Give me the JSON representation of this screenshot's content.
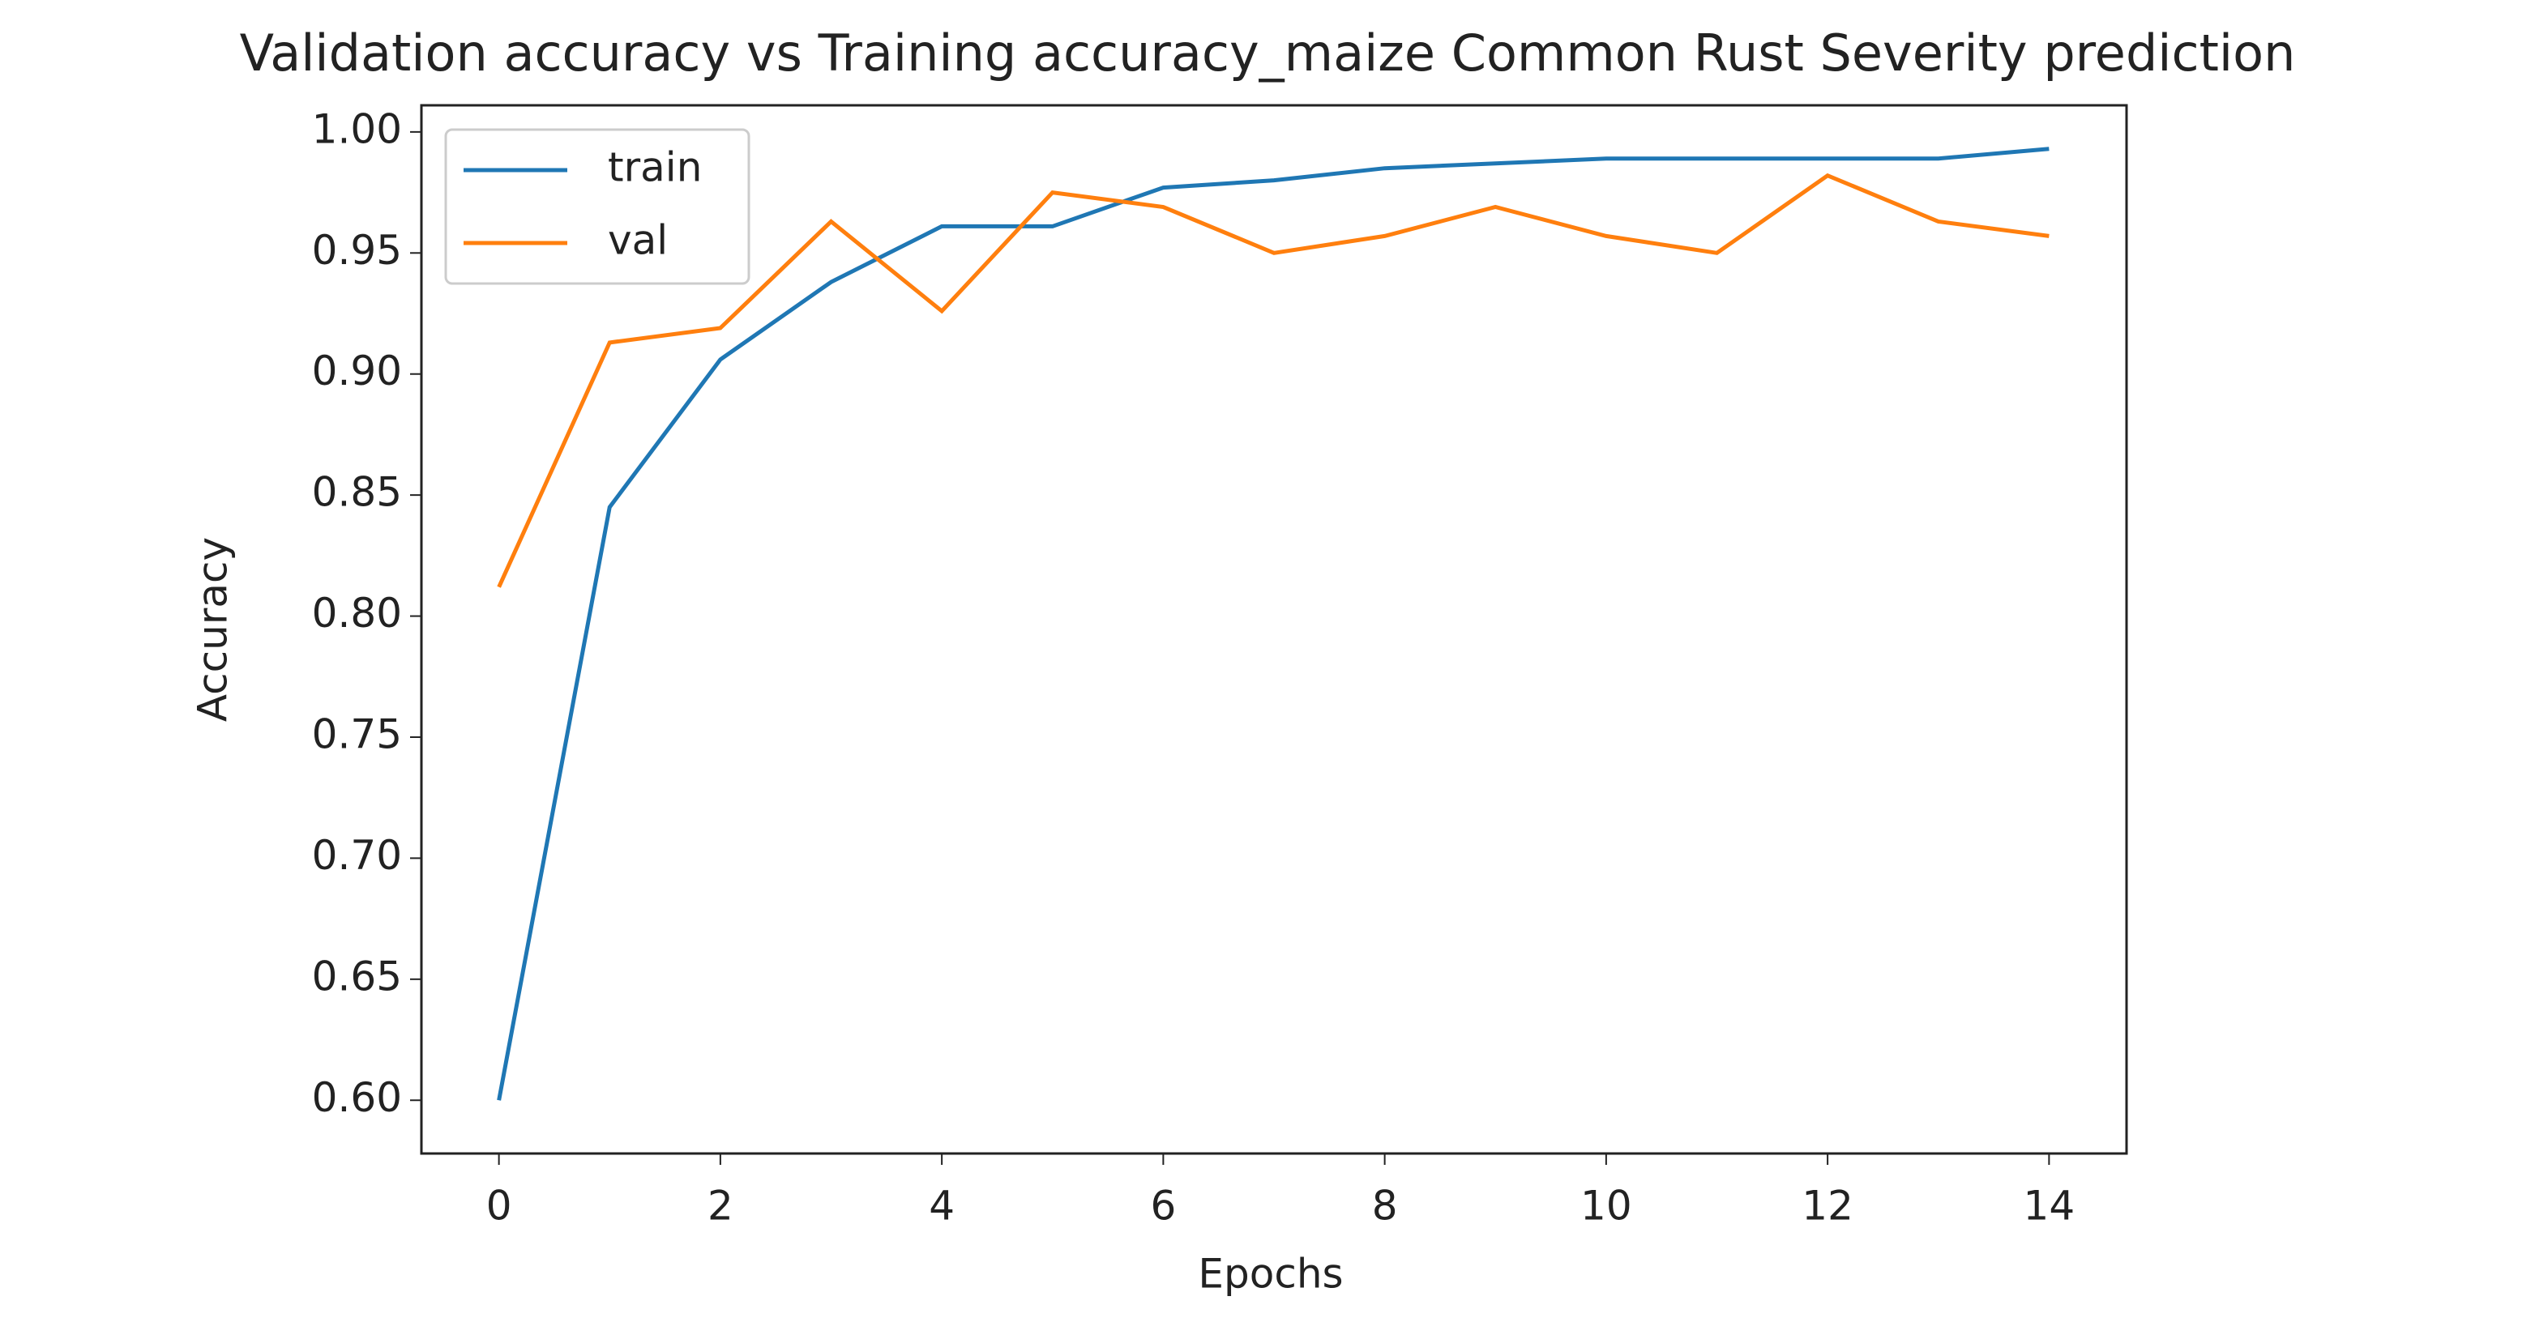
{
  "chart_data": {
    "type": "line",
    "title": "Validation accuracy vs Training accuracy_maize Common Rust Severity prediction",
    "xlabel": "Epochs",
    "ylabel": "Accuracy",
    "x": [
      0,
      1,
      2,
      3,
      4,
      5,
      6,
      7,
      8,
      9,
      10,
      11,
      12,
      13,
      14
    ],
    "series": [
      {
        "name": "train",
        "color": "#1f77b4",
        "values": [
          0.6,
          0.845,
          0.906,
          0.938,
          0.961,
          0.961,
          0.977,
          0.98,
          0.985,
          0.987,
          0.989,
          0.989,
          0.989,
          0.989,
          0.993
        ]
      },
      {
        "name": "val",
        "color": "#ff7f0e",
        "values": [
          0.812,
          0.913,
          0.919,
          0.963,
          0.926,
          0.975,
          0.969,
          0.95,
          0.957,
          0.969,
          0.957,
          0.95,
          0.982,
          0.963,
          0.957
        ]
      }
    ],
    "xlim": [
      -0.7,
      14.7
    ],
    "xticks": [
      0,
      2,
      4,
      6,
      8,
      10,
      12,
      14
    ],
    "ylim": [
      0.578,
      1.011
    ],
    "yticks": [
      {
        "value": 0.6,
        "label": "0.60"
      },
      {
        "value": 0.65,
        "label": "0.65"
      },
      {
        "value": 0.7,
        "label": "0.70"
      },
      {
        "value": 0.75,
        "label": "0.75"
      },
      {
        "value": 0.8,
        "label": "0.80"
      },
      {
        "value": 0.85,
        "label": "0.85"
      },
      {
        "value": 0.9,
        "label": "0.90"
      },
      {
        "value": 0.95,
        "label": "0.95"
      },
      {
        "value": 1.0,
        "label": "1.00"
      }
    ],
    "legend": "upper left"
  }
}
